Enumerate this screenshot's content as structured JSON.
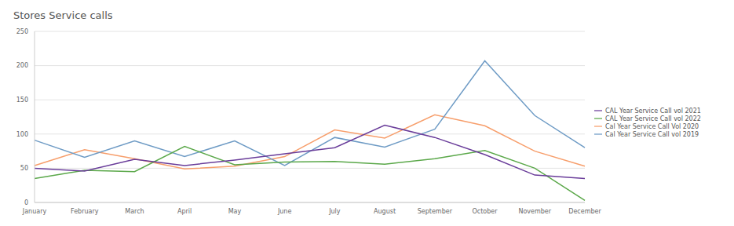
{
  "chart_data": {
    "type": "line",
    "title": "Stores Service calls",
    "categories": [
      "January",
      "February",
      "March",
      "April",
      "May",
      "June",
      "July",
      "August",
      "September",
      "October",
      "November",
      "December"
    ],
    "series": [
      {
        "name": "Cal Year Service Call Vol 2020",
        "color": "#f79e6b",
        "values": [
          54,
          77,
          64,
          49,
          53,
          67,
          106,
          94,
          128,
          112,
          75,
          53
        ]
      },
      {
        "name": "Cal Year Service Call vol 2019",
        "color": "#6e9bc5",
        "values": [
          91,
          66,
          90,
          67,
          90,
          54,
          95,
          81,
          107,
          207,
          127,
          80
        ]
      },
      {
        "name": "CAL Year Service Call vol 2022",
        "color": "#5ba84a",
        "values": [
          35,
          47,
          45,
          82,
          55,
          59,
          60,
          56,
          64,
          76,
          50,
          3
        ]
      },
      {
        "name": "CAL Year Service Call vol 2021",
        "color": "#6a3d9a",
        "values": [
          50,
          46,
          63,
          54,
          62,
          71,
          80,
          113,
          95,
          70,
          40,
          35
        ]
      }
    ],
    "ylim": [
      0,
      250
    ],
    "yticks": [
      0,
      50,
      100,
      150,
      200,
      250
    ],
    "grid": true,
    "legend": "right"
  }
}
